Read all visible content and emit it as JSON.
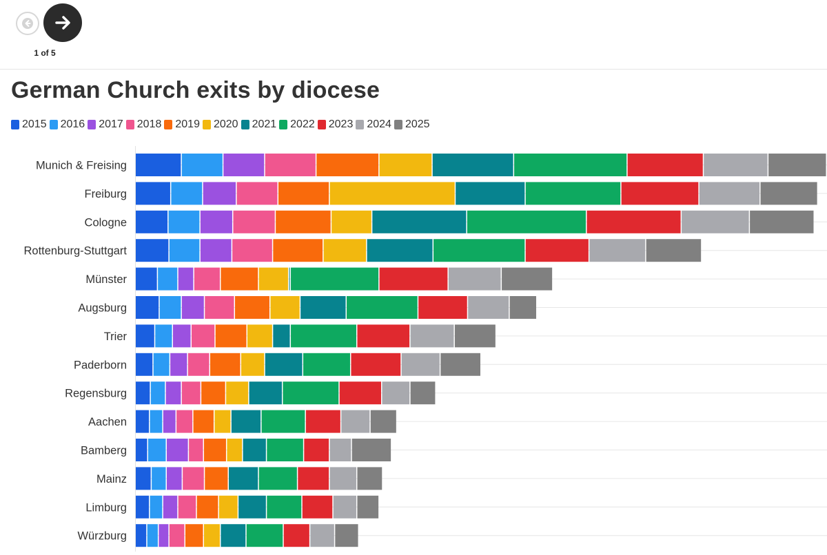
{
  "nav": {
    "counter": "1 of 5"
  },
  "chart_data": {
    "type": "bar",
    "orientation": "horizontal",
    "stacked": true,
    "title": "German Church exits by diocese",
    "xlabel": "",
    "ylabel": "",
    "xlim": [
      0,
      39000
    ],
    "grid": true,
    "legend_position": "top-left",
    "categories": [
      "Munich & Freising",
      "Freiburg",
      "Cologne",
      "Rottenburg-Stuttgart",
      "Münster",
      "Augsburg",
      "Trier",
      "Paderborn",
      "Regensburg",
      "Aachen",
      "Bamberg",
      "Mainz",
      "Limburg",
      "Würzburg"
    ],
    "series": [
      {
        "name": "2015",
        "color": "#1a5fe0",
        "values": [
          2600,
          2000,
          1850,
          1900,
          1250,
          1350,
          1100,
          1000,
          850,
          800,
          700,
          900,
          800,
          650
        ]
      },
      {
        "name": "2016",
        "color": "#2b9bf4",
        "values": [
          2350,
          1800,
          1800,
          1750,
          1150,
          1250,
          1000,
          950,
          850,
          750,
          1050,
          850,
          750,
          650
        ]
      },
      {
        "name": "2017",
        "color": "#9b51e0",
        "values": [
          2350,
          1900,
          1850,
          1800,
          900,
          1300,
          1050,
          1000,
          900,
          750,
          1250,
          900,
          850,
          600
        ]
      },
      {
        "name": "2018",
        "color": "#f0568f",
        "values": [
          2900,
          2350,
          2400,
          2300,
          1500,
          1700,
          1350,
          1250,
          1100,
          950,
          850,
          1250,
          1050,
          900
        ]
      },
      {
        "name": "2019",
        "color": "#f96a0c",
        "values": [
          3550,
          2900,
          3150,
          2850,
          2150,
          2000,
          1800,
          1750,
          1400,
          1200,
          1300,
          1350,
          1250,
          1050
        ]
      },
      {
        "name": "2020",
        "color": "#f2b80f",
        "values": [
          3000,
          7100,
          2300,
          2450,
          1700,
          1700,
          1450,
          1350,
          1300,
          950,
          900,
          0,
          1100,
          950
        ]
      },
      {
        "name": "2021",
        "color": "#07838f",
        "values": [
          4600,
          3950,
          5350,
          3750,
          100,
          2600,
          1000,
          2150,
          1900,
          1700,
          1350,
          1700,
          1600,
          1450
        ]
      },
      {
        "name": "2022",
        "color": "#0ea960",
        "values": [
          6400,
          5400,
          6750,
          5200,
          5000,
          4050,
          3750,
          2700,
          3200,
          2500,
          2100,
          2200,
          2000,
          2100
        ]
      },
      {
        "name": "2023",
        "color": "#e0292f",
        "values": [
          4300,
          4400,
          5350,
          3600,
          3900,
          2800,
          3000,
          2850,
          2400,
          2000,
          1450,
          1800,
          1750,
          1500
        ]
      },
      {
        "name": "2024",
        "color": "#a8a9ae",
        "values": [
          3650,
          3450,
          3850,
          3200,
          3000,
          2350,
          2500,
          2200,
          1600,
          1650,
          1250,
          1550,
          1350,
          1400
        ]
      },
      {
        "name": "2025",
        "color": "#808080",
        "values": [
          3300,
          3250,
          3650,
          3150,
          2900,
          1550,
          2350,
          2300,
          1450,
          1500,
          2250,
          1450,
          1250,
          1350
        ]
      }
    ]
  }
}
